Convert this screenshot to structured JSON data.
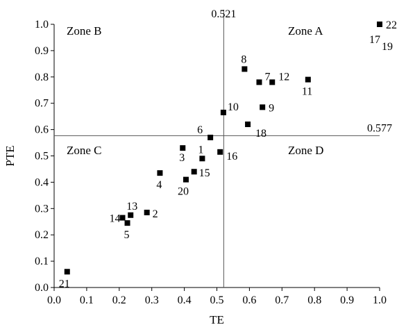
{
  "chart_data": {
    "type": "scatter",
    "xlabel": "TE",
    "ylabel": "PTE",
    "xlim": [
      0.0,
      1.0
    ],
    "ylim": [
      0.0,
      1.0
    ],
    "x_ticks": [
      "0.0",
      "0.1",
      "0.2",
      "0.3",
      "0.4",
      "0.5",
      "0.6",
      "0.7",
      "0.8",
      "0.9",
      "1.0"
    ],
    "y_ticks": [
      "0.0",
      "0.1",
      "0.2",
      "0.3",
      "0.4",
      "0.5",
      "0.6",
      "0.7",
      "0.8",
      "0.9",
      "1.0"
    ],
    "grid": false,
    "reference_lines": {
      "vertical": {
        "x": 0.521,
        "label": "0.521"
      },
      "horizontal": {
        "y": 0.577,
        "label": "0.577"
      }
    },
    "zones": [
      {
        "label": "Zone A",
        "quadrant": "top-right"
      },
      {
        "label": "Zone B",
        "quadrant": "top-left"
      },
      {
        "label": "Zone C",
        "quadrant": "bottom-left"
      },
      {
        "label": "Zone D",
        "quadrant": "bottom-right"
      }
    ],
    "points": [
      {
        "id": "1",
        "x": 0.455,
        "y": 0.49
      },
      {
        "id": "2",
        "x": 0.285,
        "y": 0.285
      },
      {
        "id": "3",
        "x": 0.395,
        "y": 0.53
      },
      {
        "id": "4",
        "x": 0.325,
        "y": 0.435
      },
      {
        "id": "5",
        "x": 0.225,
        "y": 0.245
      },
      {
        "id": "6",
        "x": 0.48,
        "y": 0.57
      },
      {
        "id": "7",
        "x": 0.63,
        "y": 0.78
      },
      {
        "id": "8",
        "x": 0.585,
        "y": 0.83
      },
      {
        "id": "9",
        "x": 0.64,
        "y": 0.685
      },
      {
        "id": "10",
        "x": 0.52,
        "y": 0.665
      },
      {
        "id": "11",
        "x": 0.78,
        "y": 0.79
      },
      {
        "id": "12",
        "x": 0.67,
        "y": 0.78
      },
      {
        "id": "13",
        "x": 0.235,
        "y": 0.275
      },
      {
        "id": "14",
        "x": 0.21,
        "y": 0.265
      },
      {
        "id": "15",
        "x": 0.43,
        "y": 0.44
      },
      {
        "id": "16",
        "x": 0.51,
        "y": 0.515
      },
      {
        "id": "17",
        "x": 1.0,
        "y": 1.0
      },
      {
        "id": "18",
        "x": 0.595,
        "y": 0.62
      },
      {
        "id": "19",
        "x": 1.0,
        "y": 1.0
      },
      {
        "id": "20",
        "x": 0.405,
        "y": 0.41
      },
      {
        "id": "21",
        "x": 0.04,
        "y": 0.06
      },
      {
        "id": "22",
        "x": 1.0,
        "y": 1.0
      }
    ]
  }
}
